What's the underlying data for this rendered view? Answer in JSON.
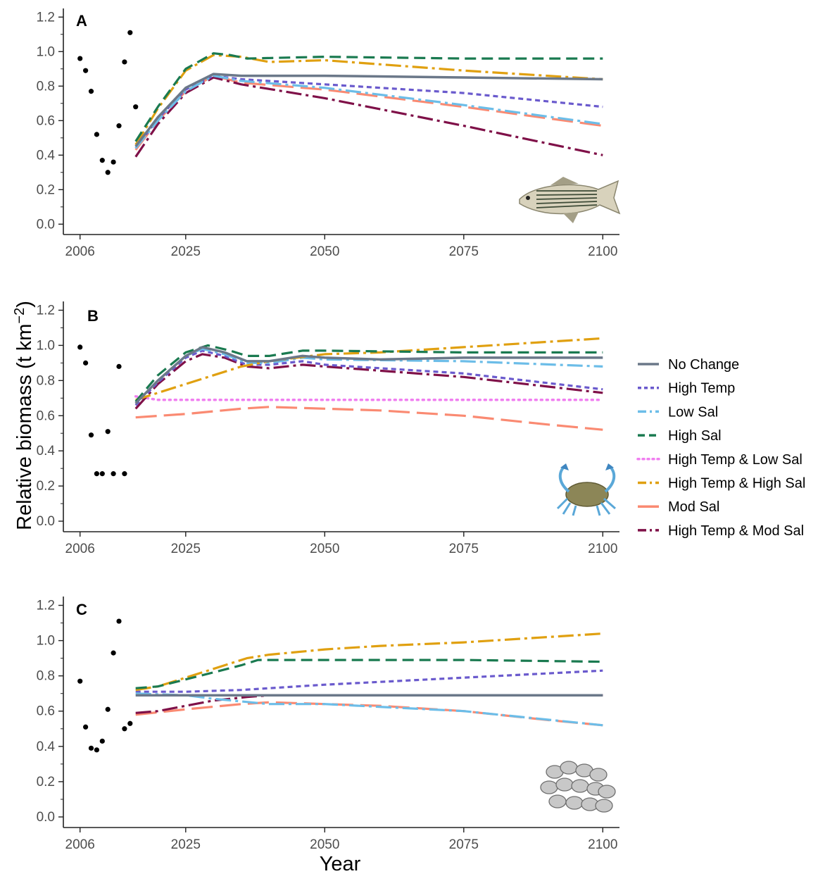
{
  "figure": {
    "ylabel": "Relative biomass (t km",
    "ylabel_exponent": "−2",
    "ylabel_close": ")",
    "xlabel": "Year"
  },
  "colors": {
    "No Change": "#6b7889",
    "High Temp": "#6a5acd",
    "Low Sal": "#6cbde8",
    "High Sal": "#1a7a50",
    "High Temp & Low Sal": "#f07ef0",
    "High Temp & High Sal": "#e0a010",
    "Mod Sal": "#fa8a72",
    "High Temp & Mod Sal": "#7f1048",
    "points": "#000000"
  },
  "legend": {
    "placement": "right",
    "items": [
      {
        "label": "No Change",
        "style": "solid"
      },
      {
        "label": "High Temp",
        "style": "dotted"
      },
      {
        "label": "Low Sal",
        "style": "dashdot"
      },
      {
        "label": "High Sal",
        "style": "dashed"
      },
      {
        "label": "High Temp & Low Sal",
        "style": "fine-dotted"
      },
      {
        "label": "High Temp & High Sal",
        "style": "dashdot"
      },
      {
        "label": "Mod Sal",
        "style": "solid"
      },
      {
        "label": "High Temp & Mod Sal",
        "style": "dashdot"
      }
    ]
  },
  "chart_data": [
    {
      "type": "line",
      "panel": "A",
      "icon": "striped-bass-icon",
      "xticks": [
        2006,
        2025,
        2050,
        2075,
        2100
      ],
      "yticks": [
        "0.0",
        "0.2",
        "0.4",
        "0.6",
        "0.8",
        "1.0",
        "1.2"
      ],
      "xlim": [
        2003,
        2103
      ],
      "ylim": [
        -0.06,
        1.25
      ],
      "points": {
        "x": [
          2006,
          2007,
          2008,
          2009,
          2010,
          2011,
          2012,
          2013,
          2014,
          2015,
          2016
        ],
        "y": [
          0.96,
          0.89,
          0.77,
          0.52,
          0.37,
          0.3,
          0.36,
          0.57,
          0.94,
          1.11,
          0.68
        ]
      },
      "series": [
        {
          "name": "No Change",
          "x": [
            2016,
            2020,
            2025,
            2030,
            2035,
            2050,
            2075,
            2100
          ],
          "y": [
            0.45,
            0.62,
            0.79,
            0.87,
            0.86,
            0.86,
            0.85,
            0.84
          ]
        },
        {
          "name": "High Temp",
          "x": [
            2016,
            2020,
            2025,
            2030,
            2035,
            2050,
            2075,
            2100
          ],
          "y": [
            0.44,
            0.61,
            0.78,
            0.86,
            0.84,
            0.81,
            0.76,
            0.68
          ]
        },
        {
          "name": "Low Sal",
          "x": [
            2016,
            2020,
            2025,
            2030,
            2035,
            2050,
            2075,
            2100
          ],
          "y": [
            0.44,
            0.6,
            0.77,
            0.86,
            0.83,
            0.79,
            0.69,
            0.58
          ]
        },
        {
          "name": "High Sal",
          "x": [
            2016,
            2020,
            2025,
            2030,
            2033,
            2036,
            2050,
            2075,
            2100
          ],
          "y": [
            0.48,
            0.68,
            0.9,
            0.99,
            0.98,
            0.96,
            0.97,
            0.96,
            0.96
          ]
        },
        {
          "name": "High Temp & High Sal",
          "x": [
            2016,
            2020,
            2025,
            2030,
            2035,
            2040,
            2050,
            2075,
            2100
          ],
          "y": [
            0.46,
            0.67,
            0.89,
            0.98,
            0.97,
            0.94,
            0.95,
            0.89,
            0.84
          ]
        },
        {
          "name": "Mod Sal",
          "x": [
            2016,
            2020,
            2025,
            2030,
            2035,
            2050,
            2075,
            2100
          ],
          "y": [
            0.43,
            0.6,
            0.77,
            0.86,
            0.82,
            0.78,
            0.68,
            0.57
          ]
        },
        {
          "name": "High Temp & Mod Sal",
          "x": [
            2016,
            2020,
            2025,
            2030,
            2035,
            2050,
            2075,
            2100
          ],
          "y": [
            0.39,
            0.58,
            0.76,
            0.85,
            0.81,
            0.73,
            0.57,
            0.4
          ]
        }
      ]
    },
    {
      "type": "line",
      "panel": "B",
      "icon": "blue-crab-icon",
      "xticks": [
        2006,
        2025,
        2050,
        2075,
        2100
      ],
      "yticks": [
        "0.0",
        "0.2",
        "0.4",
        "0.6",
        "0.8",
        "1.0",
        "1.2"
      ],
      "xlim": [
        2003,
        2103
      ],
      "ylim": [
        -0.06,
        1.25
      ],
      "points": {
        "x": [
          2006,
          2007,
          2008,
          2009,
          2010,
          2011,
          2012,
          2013,
          2014
        ],
        "y": [
          0.99,
          0.9,
          0.49,
          0.27,
          0.27,
          0.51,
          0.27,
          0.88,
          0.27
        ]
      },
      "series": [
        {
          "name": "No Change",
          "x": [
            2016,
            2020,
            2025,
            2028,
            2032,
            2036,
            2040,
            2046,
            2050,
            2060,
            2075,
            2090,
            2100
          ],
          "y": [
            0.67,
            0.8,
            0.94,
            0.99,
            0.96,
            0.91,
            0.91,
            0.94,
            0.93,
            0.92,
            0.93,
            0.93,
            0.93
          ]
        },
        {
          "name": "High Temp",
          "x": [
            2016,
            2020,
            2025,
            2028,
            2032,
            2036,
            2040,
            2046,
            2050,
            2075,
            2100
          ],
          "y": [
            0.66,
            0.79,
            0.93,
            0.97,
            0.94,
            0.89,
            0.89,
            0.91,
            0.89,
            0.84,
            0.75
          ]
        },
        {
          "name": "Low Sal",
          "x": [
            2016,
            2020,
            2025,
            2028,
            2032,
            2036,
            2040,
            2046,
            2050,
            2075,
            2100
          ],
          "y": [
            0.67,
            0.8,
            0.94,
            0.98,
            0.95,
            0.9,
            0.9,
            0.93,
            0.92,
            0.91,
            0.88
          ]
        },
        {
          "name": "High Sal",
          "x": [
            2016,
            2020,
            2025,
            2029,
            2033,
            2036,
            2040,
            2046,
            2050,
            2075,
            2100
          ],
          "y": [
            0.68,
            0.83,
            0.96,
            1.0,
            0.97,
            0.94,
            0.94,
            0.97,
            0.97,
            0.96,
            0.96
          ]
        },
        {
          "name": "High Temp & Low Sal",
          "x": [
            2016,
            2020,
            2025,
            2030,
            2040,
            2050,
            2075,
            2100
          ],
          "y": [
            0.71,
            0.69,
            0.69,
            0.69,
            0.69,
            0.69,
            0.69,
            0.69
          ]
        },
        {
          "name": "High Temp & High Sal",
          "x": [
            2016,
            2020,
            2025,
            2030,
            2035,
            2040,
            2050,
            2060,
            2075,
            2090,
            2100
          ],
          "y": [
            0.69,
            0.73,
            0.78,
            0.83,
            0.88,
            0.91,
            0.95,
            0.96,
            0.99,
            1.02,
            1.04
          ]
        },
        {
          "name": "Mod Sal",
          "x": [
            2016,
            2025,
            2035,
            2040,
            2050,
            2060,
            2075,
            2090,
            2100
          ],
          "y": [
            0.59,
            0.61,
            0.64,
            0.65,
            0.64,
            0.63,
            0.6,
            0.55,
            0.52
          ]
        },
        {
          "name": "High Temp & Mod Sal",
          "x": [
            2016,
            2020,
            2025,
            2028,
            2032,
            2036,
            2040,
            2046,
            2050,
            2075,
            2100
          ],
          "y": [
            0.64,
            0.78,
            0.91,
            0.95,
            0.93,
            0.88,
            0.87,
            0.89,
            0.88,
            0.82,
            0.73
          ]
        }
      ]
    },
    {
      "type": "line",
      "panel": "C",
      "icon": "oyster-icon",
      "xticks": [
        2006,
        2025,
        2050,
        2075,
        2100
      ],
      "yticks": [
        "0.0",
        "0.2",
        "0.4",
        "0.6",
        "0.8",
        "1.0",
        "1.2"
      ],
      "xlim": [
        2003,
        2103
      ],
      "ylim": [
        -0.06,
        1.25
      ],
      "points": {
        "x": [
          2006,
          2007,
          2008,
          2009,
          2010,
          2011,
          2012,
          2013,
          2014,
          2015
        ],
        "y": [
          0.77,
          0.51,
          0.39,
          0.38,
          0.43,
          0.61,
          0.93,
          1.11,
          0.5,
          0.53
        ]
      },
      "series": [
        {
          "name": "No Change",
          "x": [
            2016,
            2025,
            2050,
            2075,
            2100
          ],
          "y": [
            0.69,
            0.69,
            0.69,
            0.69,
            0.69
          ]
        },
        {
          "name": "High Temp",
          "x": [
            2016,
            2025,
            2035,
            2050,
            2075,
            2100
          ],
          "y": [
            0.71,
            0.71,
            0.72,
            0.75,
            0.79,
            0.83
          ]
        },
        {
          "name": "Low Sal",
          "x": [
            2016,
            2025,
            2030,
            2040,
            2050,
            2075,
            2100
          ],
          "y": [
            0.7,
            0.69,
            0.67,
            0.64,
            0.64,
            0.6,
            0.52
          ]
        },
        {
          "name": "High Sal",
          "x": [
            2016,
            2020,
            2025,
            2030,
            2035,
            2038,
            2050,
            2075,
            2100
          ],
          "y": [
            0.73,
            0.74,
            0.78,
            0.82,
            0.86,
            0.89,
            0.89,
            0.89,
            0.88
          ]
        },
        {
          "name": "High Temp & High Sal",
          "x": [
            2016,
            2020,
            2025,
            2030,
            2036,
            2040,
            2050,
            2060,
            2075,
            2090,
            2100
          ],
          "y": [
            0.72,
            0.74,
            0.79,
            0.84,
            0.9,
            0.92,
            0.95,
            0.97,
            0.99,
            1.02,
            1.04
          ]
        },
        {
          "name": "Mod Sal",
          "x": [
            2016,
            2025,
            2035,
            2040,
            2050,
            2060,
            2075,
            2090,
            2100
          ],
          "y": [
            0.58,
            0.61,
            0.64,
            0.65,
            0.64,
            0.63,
            0.6,
            0.55,
            0.52
          ]
        },
        {
          "name": "High Temp & Mod Sal",
          "x": [
            2016,
            2020,
            2025,
            2030,
            2036,
            2040,
            2050,
            2075,
            2100
          ],
          "y": [
            0.59,
            0.6,
            0.63,
            0.66,
            0.68,
            0.69,
            0.69,
            0.69,
            0.69
          ]
        }
      ]
    }
  ]
}
